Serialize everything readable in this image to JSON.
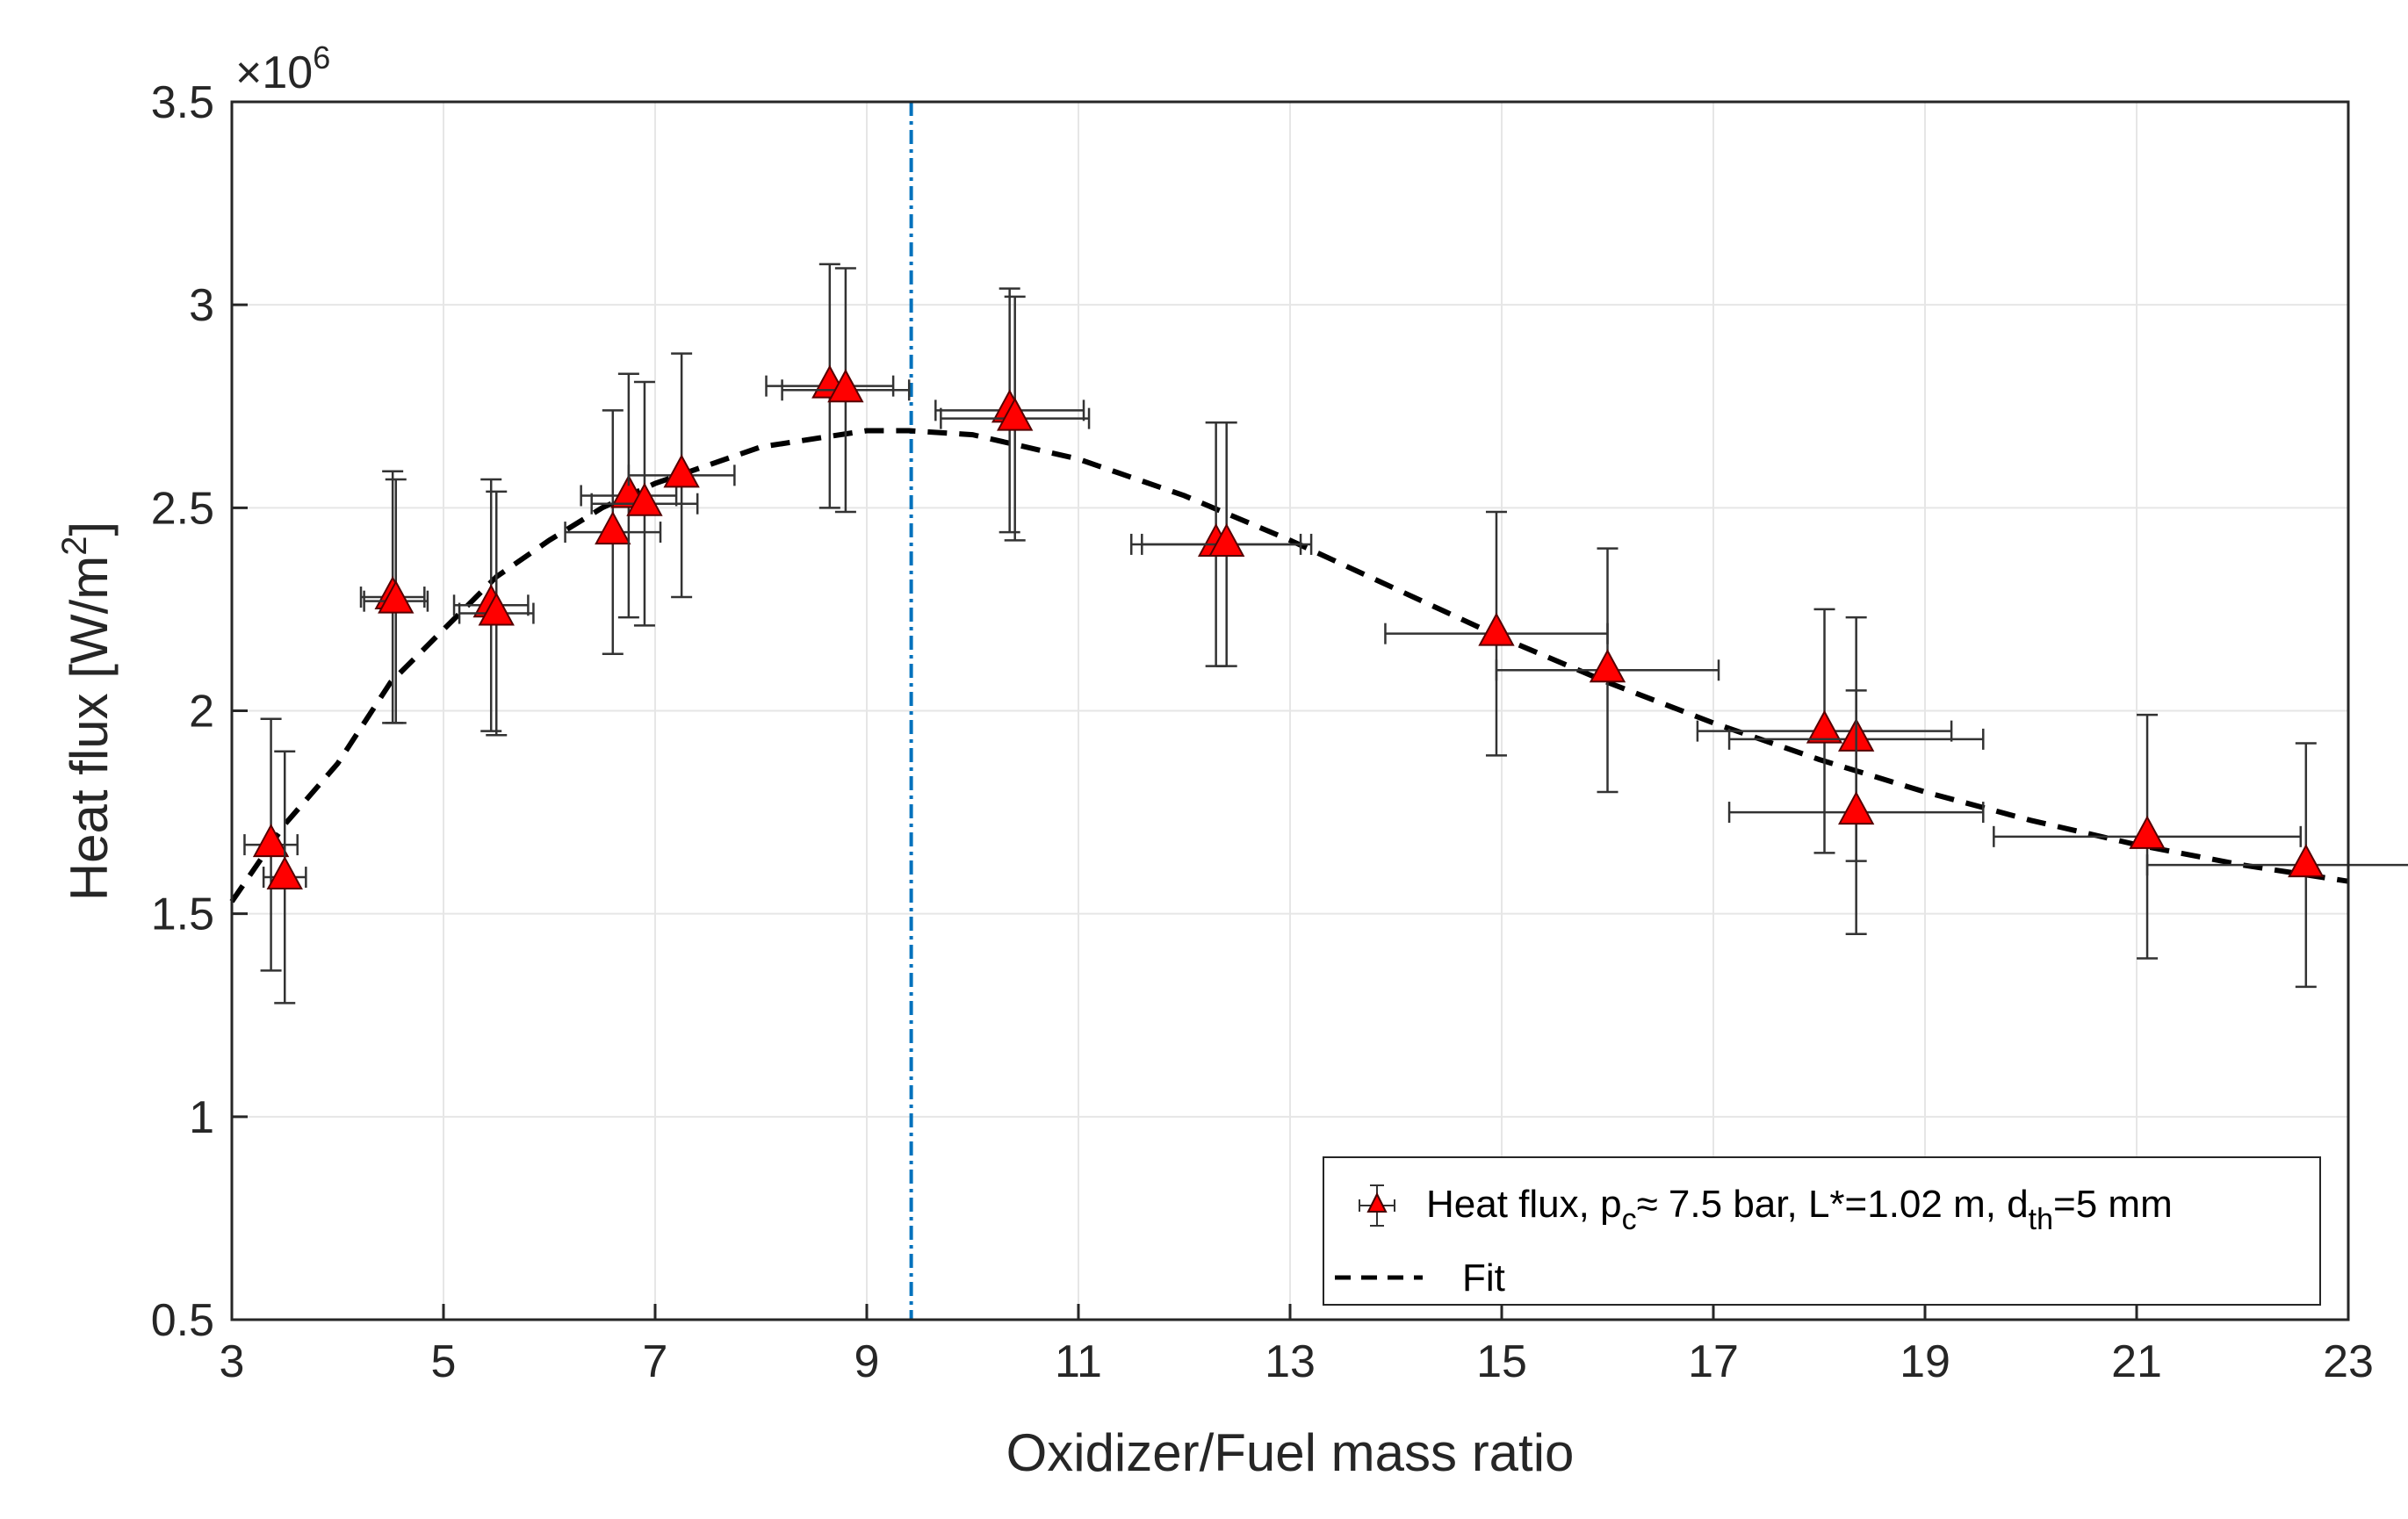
{
  "chart_data": {
    "type": "scatter",
    "xlabel": "Oxidizer/Fuel mass ratio",
    "ylabel": "Heat flux [W/m²]",
    "ylabel_parts": {
      "main": "Heat flux [W/m",
      "sup": "2",
      "end": "]"
    },
    "y_multiplier": "×10⁶",
    "y_multiplier_parts": {
      "base": "×10",
      "exp": "6"
    },
    "xlim": [
      3,
      23
    ],
    "ylim": [
      0.5,
      3.5
    ],
    "xticks": [
      "3",
      "5",
      "7",
      "9",
      "11",
      "13",
      "15",
      "17",
      "19",
      "21",
      "23"
    ],
    "yticks": [
      "0.5",
      "1",
      "1.5",
      "2",
      "2.5",
      "3",
      "3.5"
    ],
    "grid": true,
    "legend_position": "bottom-right",
    "legend": {
      "series1": {
        "a": "Heat flux, p",
        "sub1": "c",
        "b": "≈ 7.5 bar, L*=1.02 m, d",
        "sub2": "th",
        "c": "=5 mm"
      },
      "fit": "Fit"
    },
    "colors": {
      "marker": "#ff0000",
      "fit": "#000000",
      "vline": "#0072bd",
      "error_bar": "#333333"
    },
    "series": [
      {
        "marker": "triangle",
        "points": [
          {
            "x": 3.37,
            "y": 1.67,
            "yerr": 0.31,
            "xerr": 0.25
          },
          {
            "x": 3.5,
            "y": 1.59,
            "yerr": 0.31,
            "xerr": 0.2
          },
          {
            "x": 4.52,
            "y": 2.28,
            "yerr": 0.31,
            "xerr": 0.3
          },
          {
            "x": 4.55,
            "y": 2.27,
            "yerr": 0.3,
            "xerr": 0.3
          },
          {
            "x": 5.45,
            "y": 2.26,
            "yerr": 0.31,
            "xerr": 0.35
          },
          {
            "x": 5.5,
            "y": 2.24,
            "yerr": 0.3,
            "xerr": 0.35
          },
          {
            "x": 6.6,
            "y": 2.44,
            "yerr": 0.3,
            "xerr": 0.45
          },
          {
            "x": 6.75,
            "y": 2.53,
            "yerr": 0.3,
            "xerr": 0.45
          },
          {
            "x": 6.9,
            "y": 2.51,
            "yerr": 0.3,
            "xerr": 0.5
          },
          {
            "x": 7.25,
            "y": 2.58,
            "yerr": 0.3,
            "xerr": 0.5
          },
          {
            "x": 8.65,
            "y": 2.8,
            "yerr": 0.3,
            "xerr": 0.6
          },
          {
            "x": 8.8,
            "y": 2.79,
            "yerr": 0.3,
            "xerr": 0.6
          },
          {
            "x": 10.35,
            "y": 2.74,
            "yerr": 0.3,
            "xerr": 0.7
          },
          {
            "x": 10.4,
            "y": 2.72,
            "yerr": 0.3,
            "xerr": 0.7
          },
          {
            "x": 12.3,
            "y": 2.41,
            "yerr": 0.3,
            "xerr": 0.8
          },
          {
            "x": 12.4,
            "y": 2.41,
            "yerr": 0.3,
            "xerr": 0.8
          },
          {
            "x": 14.95,
            "y": 2.19,
            "yerr": 0.3,
            "xerr": 1.05
          },
          {
            "x": 16.0,
            "y": 2.1,
            "yerr": 0.3,
            "xerr": 1.05
          },
          {
            "x": 18.05,
            "y": 1.95,
            "yerr": 0.3,
            "xerr": 1.2
          },
          {
            "x": 18.35,
            "y": 1.93,
            "yerr": 0.3,
            "xerr": 1.2
          },
          {
            "x": 18.35,
            "y": 1.75,
            "yerr": 0.3,
            "xerr": 1.2
          },
          {
            "x": 21.1,
            "y": 1.69,
            "yerr": 0.3,
            "xerr": 1.45
          },
          {
            "x": 22.6,
            "y": 1.62,
            "yerr": 0.3,
            "xerr": 1.5
          }
        ]
      },
      {
        "line": "dashed",
        "x": [
          3,
          3.5,
          4,
          4.5,
          5,
          5.5,
          6,
          6.5,
          7,
          8,
          9,
          9.4,
          10,
          11,
          12,
          13,
          14,
          15,
          16,
          17,
          18,
          19,
          20,
          21,
          22,
          23
        ],
        "y": [
          1.53,
          1.72,
          1.87,
          2.07,
          2.2,
          2.33,
          2.42,
          2.5,
          2.56,
          2.65,
          2.69,
          2.69,
          2.68,
          2.62,
          2.53,
          2.42,
          2.3,
          2.18,
          2.07,
          1.97,
          1.88,
          1.8,
          1.73,
          1.67,
          1.62,
          1.58
        ]
      }
    ],
    "vertical_line": {
      "x": 9.42,
      "style": "dash-dot"
    }
  }
}
